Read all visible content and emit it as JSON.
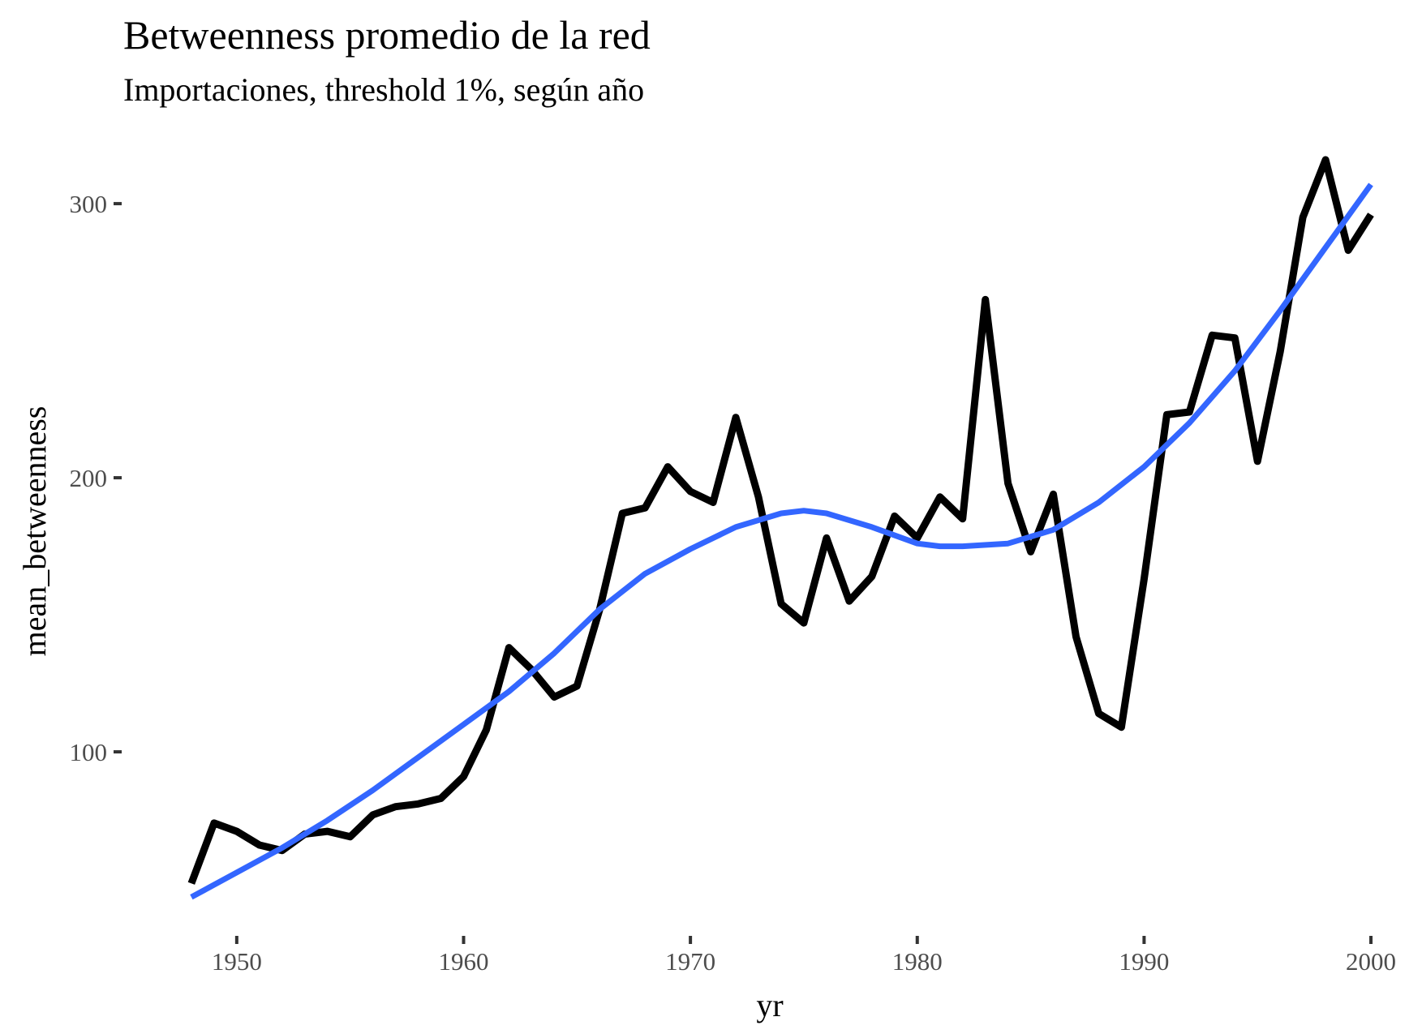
{
  "chart_data": {
    "type": "line",
    "title": "Betweenness promedio de la red",
    "subtitle": "Importaciones, threshold 1%, según año",
    "xlabel": "yr",
    "ylabel": "mean_betweenness",
    "xlim": [
      1946,
      2001
    ],
    "ylim": [
      37,
      324
    ],
    "x_ticks": [
      1950,
      1960,
      1970,
      1980,
      1990,
      2000
    ],
    "y_ticks": [
      100,
      200,
      300
    ],
    "grid": false,
    "legend": "none",
    "series": [
      {
        "color": "#000000",
        "x": [
          1948,
          1949,
          1950,
          1951,
          1952,
          1953,
          1954,
          1955,
          1956,
          1957,
          1958,
          1959,
          1960,
          1961,
          1962,
          1963,
          1964,
          1965,
          1966,
          1967,
          1968,
          1969,
          1970,
          1971,
          1972,
          1973,
          1974,
          1975,
          1976,
          1977,
          1978,
          1979,
          1980,
          1981,
          1982,
          1983,
          1984,
          1985,
          1986,
          1987,
          1988,
          1989,
          1990,
          1991,
          1992,
          1993,
          1994,
          1995,
          1996,
          1997,
          1998,
          1999,
          2000
        ],
        "values": [
          52,
          74,
          71,
          66,
          64,
          70,
          71,
          69,
          77,
          80,
          81,
          83,
          91,
          108,
          138,
          130,
          120,
          124,
          152,
          187,
          189,
          204,
          195,
          191,
          222,
          193,
          154,
          147,
          178,
          155,
          164,
          186,
          178,
          193,
          185,
          265,
          198,
          173,
          194,
          142,
          114,
          109,
          163,
          223,
          224,
          252,
          251,
          206,
          246,
          295,
          316,
          283,
          296
        ]
      },
      {
        "color": "#3366ff",
        "x": [
          1948,
          1950,
          1952,
          1954,
          1956,
          1958,
          1960,
          1962,
          1964,
          1966,
          1968,
          1970,
          1972,
          1974,
          1975,
          1976,
          1978,
          1980,
          1981,
          1982,
          1984,
          1986,
          1988,
          1990,
          1992,
          1994,
          1996,
          1998,
          2000
        ],
        "values": [
          47,
          56,
          65,
          75,
          86,
          98,
          110,
          122,
          136,
          152,
          165,
          174,
          182,
          187,
          188,
          187,
          182,
          176,
          175,
          175,
          176,
          181,
          191,
          204,
          220,
          239,
          261,
          284,
          307
        ]
      }
    ]
  }
}
